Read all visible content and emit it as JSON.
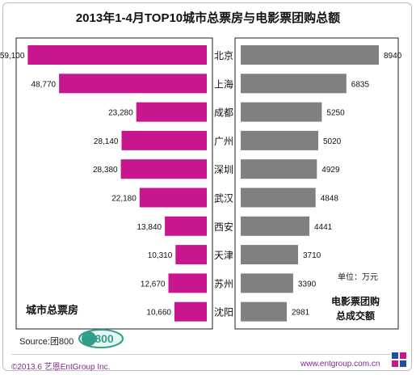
{
  "title": "2013年1-4月TOP10城市总票房与电影票团购总额",
  "source_text": "Source:团800",
  "logo_text": "800",
  "footer": {
    "left": "©2013.6 艺恩EntGroup Inc.",
    "right": "www.entgroup.com.cn"
  },
  "chart_data": {
    "type": "bar",
    "title": "2013年1-4月TOP10城市总票房与电影票团购总额",
    "categories": [
      "北京",
      "上海",
      "成都",
      "广州",
      "深圳",
      "武汉",
      "西安",
      "天津",
      "苏州",
      "沈阳"
    ],
    "series": [
      {
        "name": "城市总票房",
        "values": [
          59100,
          48770,
          23280,
          28140,
          28380,
          22180,
          13840,
          10310,
          12670,
          10660
        ],
        "labels": [
          "59,100",
          "48,770",
          "23,280",
          "28,140",
          "28,380",
          "22,180",
          "13,840",
          "10,310",
          "12,670",
          "10,660"
        ],
        "color": "#c8168e"
      },
      {
        "name": "电影票团购总成交额",
        "values": [
          8940,
          6835,
          5250,
          5020,
          4929,
          4848,
          4441,
          3710,
          3390,
          2981
        ],
        "labels": [
          "8940",
          "6835",
          "5250",
          "5020",
          "4929",
          "4848",
          "4441",
          "3710",
          "3390",
          "2981"
        ],
        "color": "#808080"
      }
    ],
    "left_panel_label": "城市总票房",
    "right_panel_label_line1": "电影票团购",
    "right_panel_label_line2": "总成交额",
    "unit_label": "单位：万元",
    "left_xlim": [
      0,
      60000
    ],
    "right_xlim": [
      0,
      9200
    ],
    "grid": false,
    "layout": "back-to-back horizontal bars"
  }
}
